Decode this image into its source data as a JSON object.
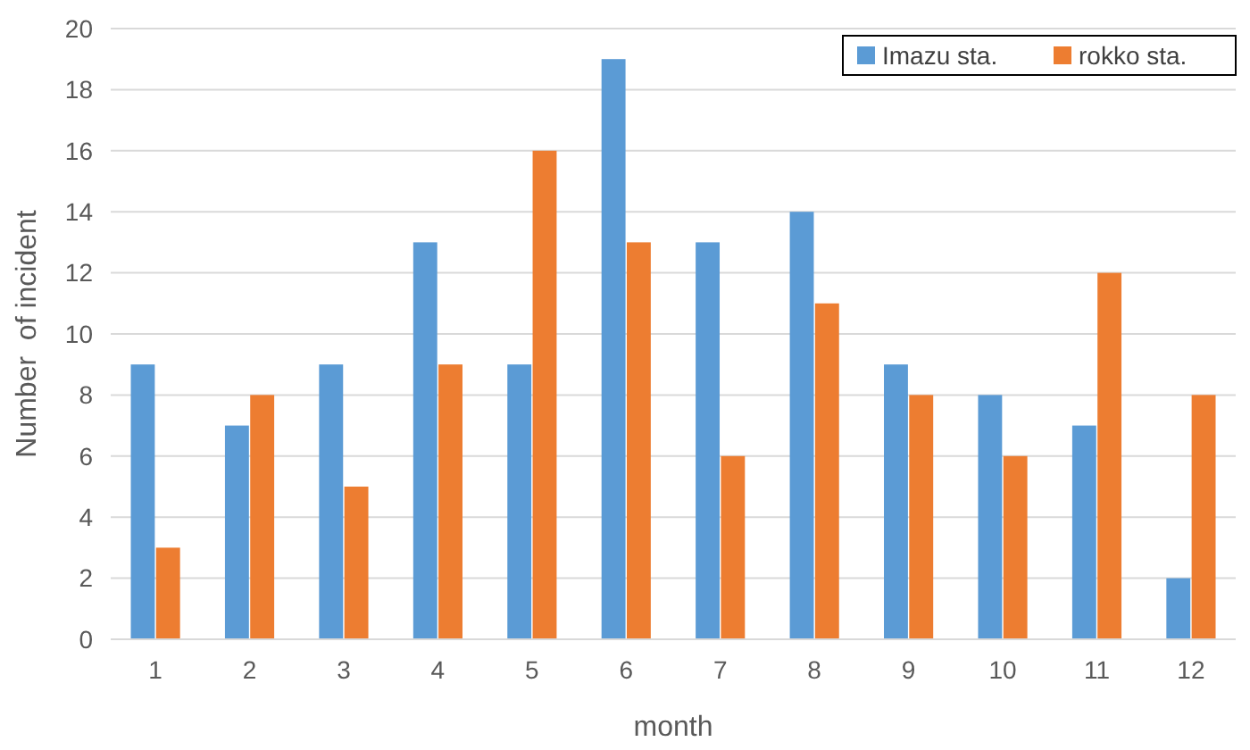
{
  "chart_data": {
    "type": "bar",
    "xlabel": "month",
    "ylabel": "Number  of incident",
    "categories": [
      "1",
      "2",
      "3",
      "4",
      "5",
      "6",
      "7",
      "8",
      "9",
      "10",
      "11",
      "12"
    ],
    "series": [
      {
        "name": "Imazu sta.",
        "color": "#5b9bd5",
        "values": [
          9,
          7,
          9,
          13,
          9,
          19,
          13,
          14,
          9,
          8,
          7,
          2
        ]
      },
      {
        "name": "rokko sta.",
        "color": "#ed7d31",
        "values": [
          3,
          8,
          5,
          9,
          16,
          13,
          6,
          11,
          8,
          6,
          12,
          8
        ]
      }
    ],
    "ylim": [
      0,
      20
    ],
    "yticks": [
      0,
      2,
      4,
      6,
      8,
      10,
      12,
      14,
      16,
      18,
      20
    ],
    "grid": "y",
    "legend": "top right"
  }
}
